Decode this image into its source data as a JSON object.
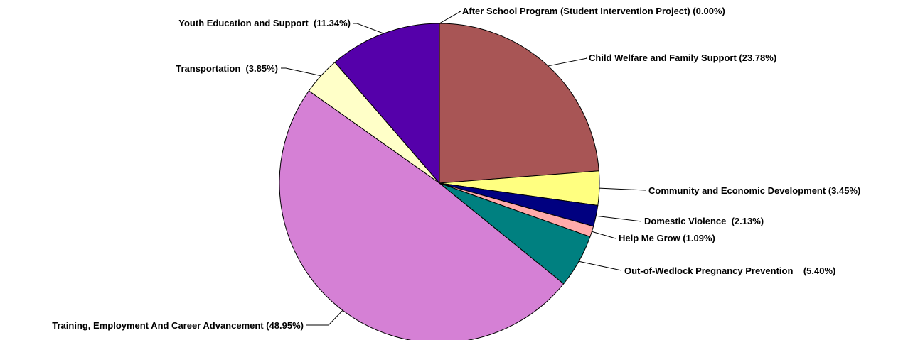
{
  "chart_data": {
    "type": "pie",
    "title": "",
    "start_angle_deg": 0,
    "direction": "clockwise",
    "slices": [
      {
        "label": "After School Program (Student Intervention Project) (0.00%)",
        "value": 0.0,
        "color": "#ffffff"
      },
      {
        "label": "Child Welfare and Family Support (23.78%)",
        "value": 23.78,
        "color": "#a85555"
      },
      {
        "label": "Community and Economic Development (3.45%)",
        "value": 3.45,
        "color": "#ffff80"
      },
      {
        "label": "Domestic Violence  (2.13%)",
        "value": 2.13,
        "color": "#000080"
      },
      {
        "label": "Help Me Grow (1.09%)",
        "value": 1.09,
        "color": "#ffaaaa"
      },
      {
        "label": "Out-of-Wedlock Pregnancy Prevention    (5.40%)",
        "value": 5.4,
        "color": "#008080"
      },
      {
        "label": "Training, Employment And Career Advancement (48.95%)",
        "value": 48.95,
        "color": "#d580d5"
      },
      {
        "label": "Transportation  (3.85%)",
        "value": 3.85,
        "color": "#ffffc8"
      },
      {
        "label": "Youth Education and Support  (11.34%)",
        "value": 11.34,
        "color": "#5500aa"
      }
    ]
  }
}
